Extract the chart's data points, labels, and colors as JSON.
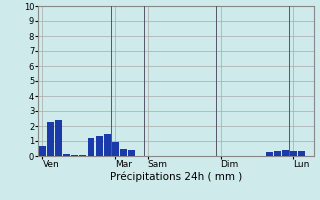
{
  "title": "",
  "xlabel": "Précipitations 24h ( mm )",
  "ylabel": "",
  "ylim": [
    0,
    10
  ],
  "yticks": [
    0,
    1,
    2,
    3,
    4,
    5,
    6,
    7,
    8,
    9,
    10
  ],
  "background_color": "#ceeaea",
  "bar_color": "#1a3aaa",
  "grid_color": "#aaaaaa",
  "bar_values": [
    0.7,
    2.3,
    2.4,
    0.15,
    0.1,
    0.1,
    1.2,
    1.35,
    1.45,
    0.95,
    0.45,
    0.4,
    0.0,
    0.0,
    0.0,
    0.0,
    0.0,
    0.0,
    0.0,
    0.0,
    0.0,
    0.0,
    0.0,
    0.0,
    0.0,
    0.0,
    0.0,
    0.0,
    0.3,
    0.35,
    0.4,
    0.35,
    0.35,
    0.0
  ],
  "day_labels": [
    "Ven",
    "Mar",
    "Sam",
    "Dim",
    "Lun"
  ],
  "day_tick_positions": [
    0,
    9,
    13,
    22,
    31
  ],
  "n_bars": 34,
  "vline_positions": [
    9,
    13,
    22,
    31
  ],
  "vline_color": "#555566"
}
